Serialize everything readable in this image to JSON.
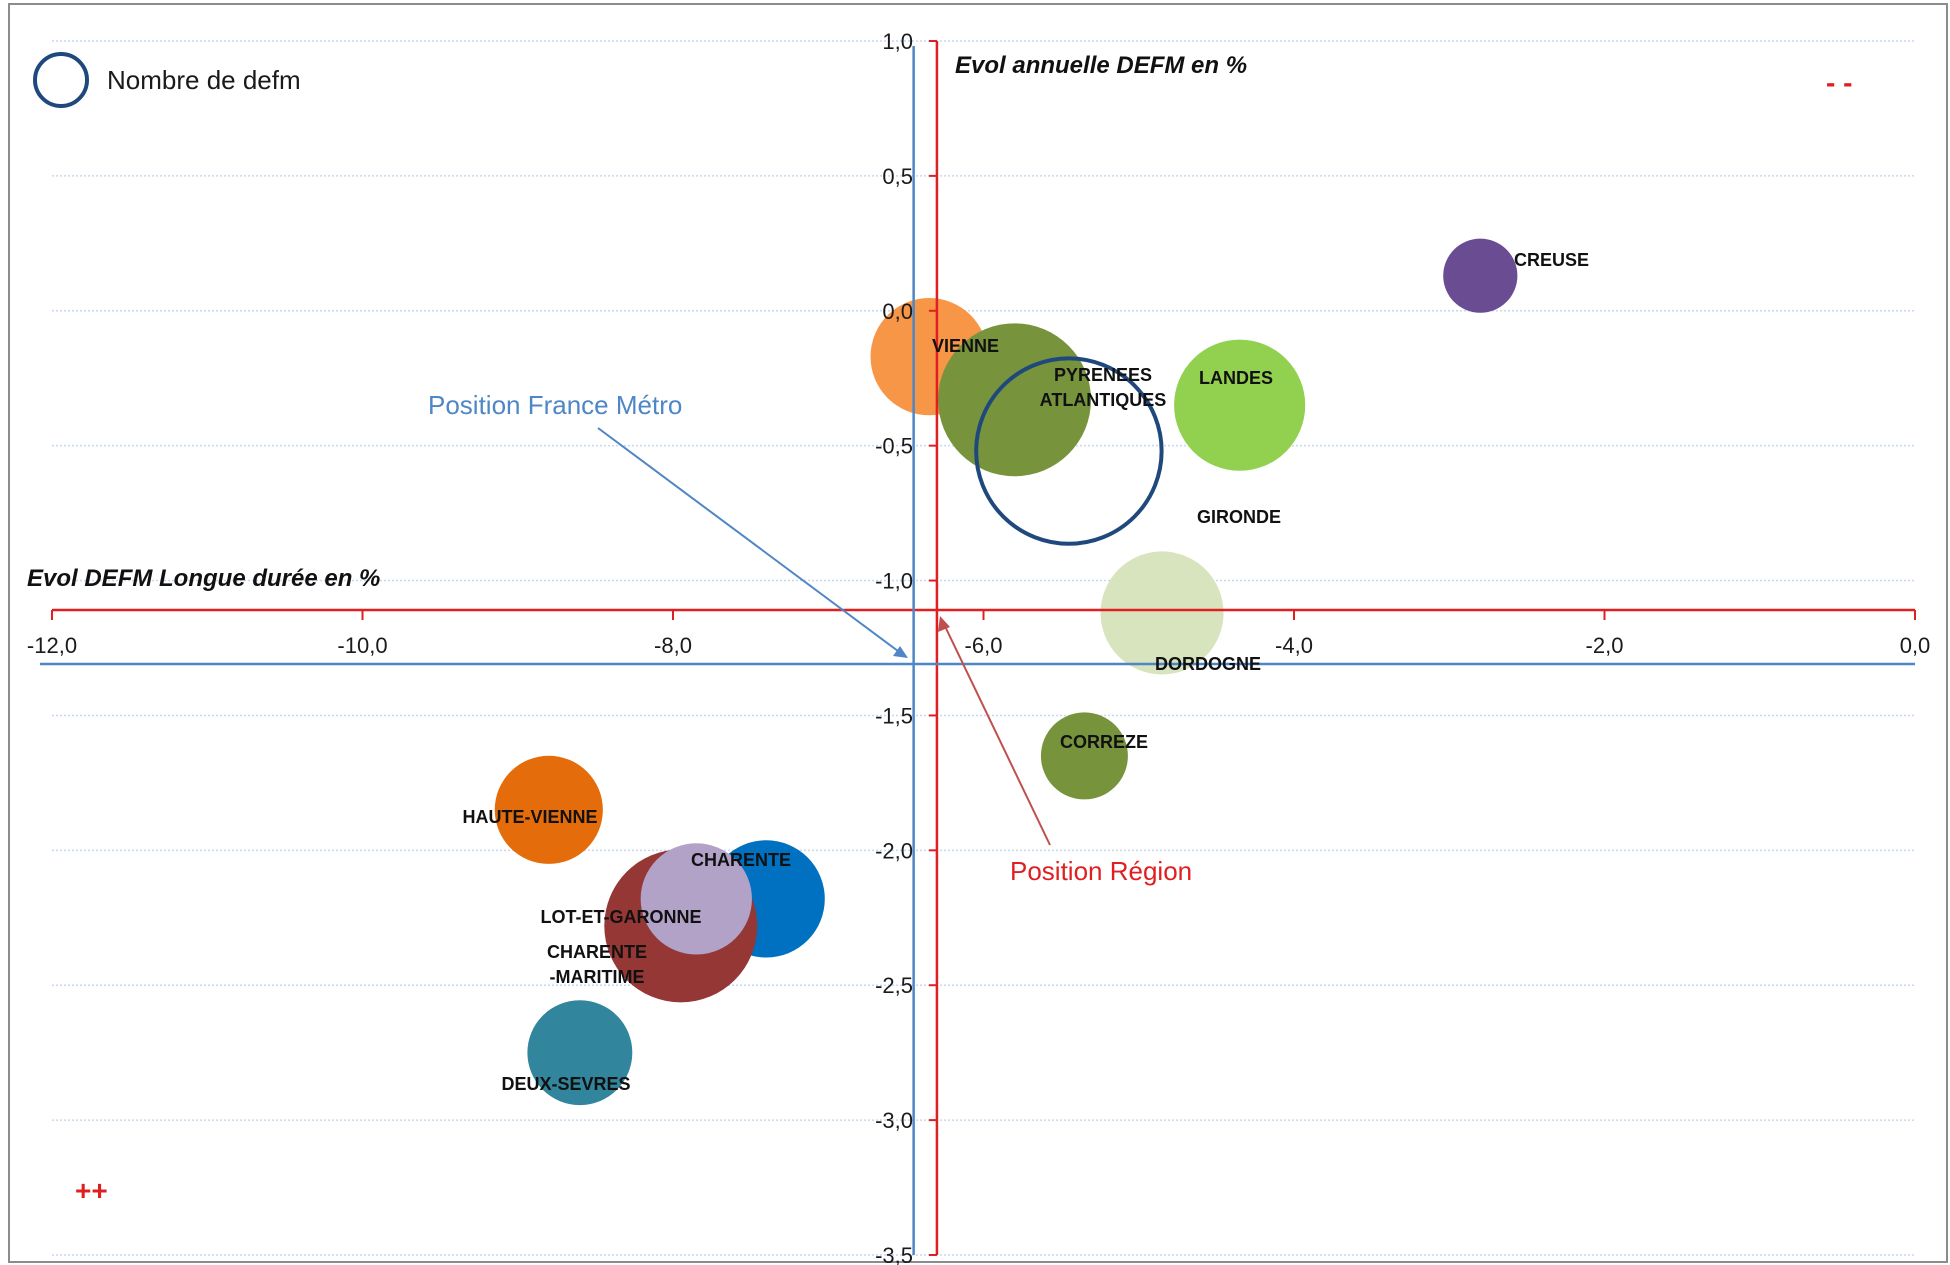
{
  "chart_data": {
    "type": "bubble",
    "xlabel": "Evol DEFM Longue durée en %",
    "ylabel": "Evol annuelle DEFM en %",
    "xlim": [
      -12.0,
      0.0
    ],
    "ylim": [
      -3.5,
      1.0
    ],
    "x_ticks": [
      "-12,0",
      "-10,0",
      "-8,0",
      "-6,0",
      "-4,0",
      "-2,0",
      "0,0"
    ],
    "y_ticks": [
      "1,0",
      "0,5",
      "0,0",
      "-0,5",
      "-1,0",
      "-1,5",
      "-2,0",
      "-2,5",
      "-3,0",
      "-3,5"
    ],
    "grid": "horizontal",
    "legend": {
      "label": "Nombre de defm",
      "position": "top-left",
      "marker": "hollow-circle"
    },
    "reference_lines": {
      "region": {
        "label": "Position Région",
        "x": -6.3,
        "y": -1.1,
        "color": "#e02020"
      },
      "france_metro": {
        "label": "Position France Métro",
        "x": -6.45,
        "y": -1.3,
        "color": "#4f86c6"
      }
    },
    "corner_labels": {
      "top_right": "- -",
      "bottom_left": "++"
    },
    "series": [
      {
        "name": "CREUSE",
        "x": -2.8,
        "y": 0.13,
        "size": 0.8,
        "color": "#6a4c93"
      },
      {
        "name": "VIENNE",
        "x": -6.35,
        "y": -0.17,
        "size": 2.0,
        "color": "#f79646"
      },
      {
        "name": "PYRENEES ATLANTIQUES",
        "x": -5.8,
        "y": -0.33,
        "size": 3.4,
        "color": "#77933c"
      },
      {
        "name": "GIRONDE",
        "x": -5.45,
        "y": -0.52,
        "size": 5.0,
        "color": "none",
        "outline": "#1f497d"
      },
      {
        "name": "LANDES",
        "x": -4.35,
        "y": -0.35,
        "size": 2.5,
        "color": "#92d050"
      },
      {
        "name": "DORDOGNE",
        "x": -4.85,
        "y": -1.12,
        "size": 2.2,
        "color": "#d7e4bd"
      },
      {
        "name": "CORREZE",
        "x": -5.35,
        "y": -1.65,
        "size": 1.1,
        "color": "#77933c"
      },
      {
        "name": "HAUTE-VIENNE",
        "x": -8.8,
        "y": -1.85,
        "size": 1.7,
        "color": "#e46c0a"
      },
      {
        "name": "CHARENTE",
        "x": -7.4,
        "y": -2.18,
        "size": 2.0,
        "color": "#0070c0"
      },
      {
        "name": "CHARENTE -MARITIME",
        "x": -7.95,
        "y": -2.28,
        "size": 3.4,
        "color": "#953735"
      },
      {
        "name": "LOT-ET-GARONNE",
        "x": -7.85,
        "y": -2.18,
        "size": 1.8,
        "color": "#b3a2c7"
      },
      {
        "name": "DEUX-SEVRES",
        "x": -8.6,
        "y": -2.75,
        "size": 1.6,
        "color": "#31859c"
      }
    ]
  },
  "bubble_labels": {
    "CREUSE": "CREUSE",
    "VIENNE": "VIENNE",
    "PYRENEES_1": "PYRENEES",
    "PYRENEES_2": "ATLANTIQUES",
    "GIRONDE": "GIRONDE",
    "LANDES": "LANDES",
    "DORDOGNE": "DORDOGNE",
    "CORREZE": "CORREZE",
    "HAUTE_VIENNE": "HAUTE-VIENNE",
    "CHARENTE": "CHARENTE",
    "LOT_ET_GARONNE": "LOT-ET-GARONNE",
    "CHARENTE_MARITIME_1": "CHARENTE",
    "CHARENTE_MARITIME_2": "-MARITIME",
    "DEUX_SEVRES": "DEUX-SEVRES"
  }
}
